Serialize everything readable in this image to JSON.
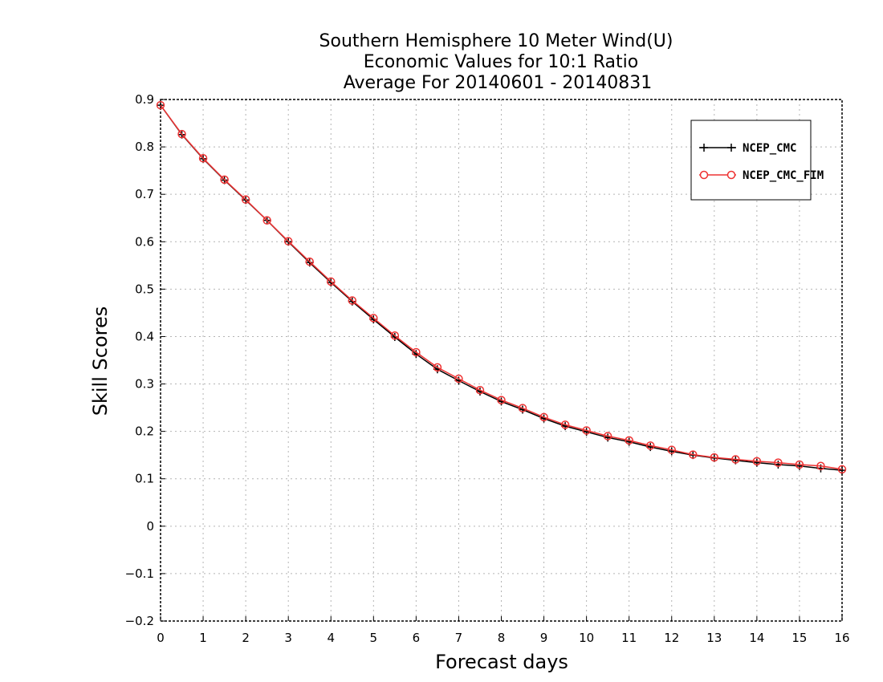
{
  "chart_data": {
    "type": "line",
    "title": [
      "Southern Hemisphere 10 Meter Wind(U)",
      "Economic Values for 10:1 Ratio",
      "Average For 20140601 - 20140831"
    ],
    "xlabel": "Forecast days",
    "ylabel": "Skill Scores",
    "xlim": [
      0,
      16
    ],
    "ylim": [
      -0.2,
      0.9
    ],
    "xticks": [
      0,
      1,
      2,
      3,
      4,
      5,
      6,
      7,
      8,
      9,
      10,
      11,
      12,
      13,
      14,
      15,
      16
    ],
    "yticks": [
      -0.2,
      -0.1,
      0,
      0.1,
      0.2,
      0.3,
      0.4,
      0.5,
      0.6,
      0.7,
      0.8,
      0.9
    ],
    "ytick_labels": [
      "−0.2",
      "−0.1",
      "0",
      "0.1",
      "0.2",
      "0.3",
      "0.4",
      "0.5",
      "0.6",
      "0.7",
      "0.8",
      "0.9"
    ],
    "grid": true,
    "legend_position": "top-right",
    "x": [
      0,
      0.5,
      1,
      1.5,
      2,
      2.5,
      3,
      3.5,
      4,
      4.5,
      5,
      5.5,
      6,
      6.5,
      7,
      7.5,
      8,
      8.5,
      9,
      9.5,
      10,
      10.5,
      11,
      11.5,
      12,
      12.5,
      13,
      13.5,
      14,
      14.5,
      15,
      15.5,
      16
    ],
    "series": [
      {
        "name": "NCEP_CMC",
        "color": "#000000",
        "marker": "plus",
        "values": [
          0.888,
          0.826,
          0.775,
          0.73,
          0.688,
          0.645,
          0.6,
          0.556,
          0.514,
          0.474,
          0.436,
          0.399,
          0.363,
          0.331,
          0.307,
          0.284,
          0.263,
          0.246,
          0.227,
          0.211,
          0.199,
          0.187,
          0.178,
          0.167,
          0.158,
          0.15,
          0.144,
          0.139,
          0.134,
          0.13,
          0.127,
          0.122,
          0.118
        ]
      },
      {
        "name": "NCEP_CMC_FIM",
        "color": "#ee3333",
        "marker": "circle",
        "values": [
          0.888,
          0.827,
          0.776,
          0.731,
          0.689,
          0.645,
          0.601,
          0.558,
          0.516,
          0.476,
          0.439,
          0.402,
          0.367,
          0.335,
          0.311,
          0.287,
          0.266,
          0.249,
          0.23,
          0.214,
          0.202,
          0.19,
          0.181,
          0.17,
          0.161,
          0.151,
          0.145,
          0.141,
          0.137,
          0.134,
          0.13,
          0.127,
          0.12
        ]
      }
    ]
  }
}
